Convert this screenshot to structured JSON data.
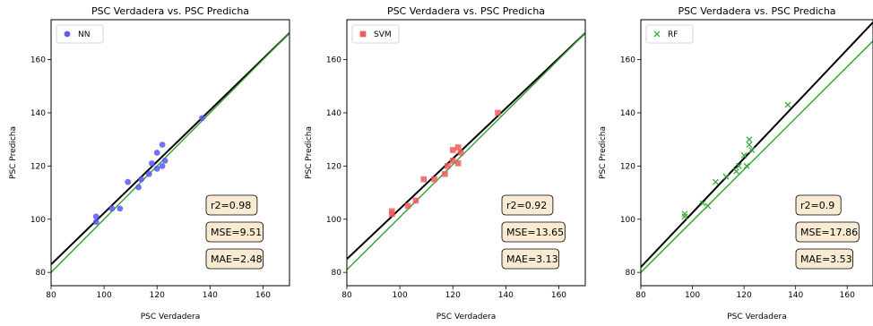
{
  "chart_data": [
    {
      "type": "scatter",
      "title": "PSC Verdadera vs. PSC Predicha",
      "xlabel": "PSC Verdadera",
      "ylabel": "PSC Predicha",
      "xlim": [
        80,
        170
      ],
      "ylim": [
        75,
        175
      ],
      "xticks": [
        80,
        100,
        120,
        140,
        160
      ],
      "yticks": [
        80,
        100,
        120,
        140,
        160
      ],
      "legend_position": "top-left",
      "series": [
        {
          "name": "NN",
          "marker": "circle",
          "color": "#5b5bf0",
          "points": [
            [
              97,
              101
            ],
            [
              97,
              99
            ],
            [
              103,
              104
            ],
            [
              106,
              104
            ],
            [
              109,
              114
            ],
            [
              113,
              112
            ],
            [
              114,
              115
            ],
            [
              117,
              117
            ],
            [
              118,
              121
            ],
            [
              120,
              119
            ],
            [
              120,
              125
            ],
            [
              122,
              120
            ],
            [
              122,
              128
            ],
            [
              123,
              122
            ],
            [
              137,
              138
            ]
          ]
        }
      ],
      "lines": [
        {
          "name": "black",
          "color": "#000000",
          "y_at_x80": 83,
          "y_at_x170": 170
        },
        {
          "name": "green",
          "color": "#2ca02c",
          "y_at_x80": 80,
          "y_at_x170": 170
        }
      ],
      "annotations": [
        "r2=0.98",
        "MSE=9.51",
        "MAE=2.48"
      ]
    },
    {
      "type": "scatter",
      "title": "PSC Verdadera vs. PSC Predicha",
      "xlabel": "PSC Verdadera",
      "ylabel": "PSC Predicha",
      "xlim": [
        80,
        170
      ],
      "ylim": [
        75,
        175
      ],
      "xticks": [
        80,
        100,
        120,
        140,
        160
      ],
      "yticks": [
        80,
        100,
        120,
        140,
        160
      ],
      "legend_position": "top-left",
      "series": [
        {
          "name": "SVM",
          "marker": "square",
          "color": "#f05a5a",
          "points": [
            [
              97,
              102
            ],
            [
              97,
              103
            ],
            [
              103,
              105
            ],
            [
              106,
              107
            ],
            [
              109,
              115
            ],
            [
              113,
              115
            ],
            [
              117,
              117
            ],
            [
              118,
              120
            ],
            [
              120,
              122
            ],
            [
              120,
              126
            ],
            [
              122,
              121
            ],
            [
              122,
              127
            ],
            [
              123,
              125
            ],
            [
              137,
              140
            ]
          ]
        }
      ],
      "lines": [
        {
          "name": "black",
          "color": "#000000",
          "y_at_x80": 85,
          "y_at_x170": 170
        },
        {
          "name": "green",
          "color": "#2ca02c",
          "y_at_x80": 81,
          "y_at_x170": 170
        }
      ],
      "annotations": [
        "r2=0.92",
        "MSE=13.65",
        "MAE=3.13"
      ]
    },
    {
      "type": "scatter",
      "title": "PSC Verdadera vs. PSC Predicha",
      "xlabel": "PSC Verdadera",
      "ylabel": "PSC Predicha",
      "xlim": [
        80,
        170
      ],
      "ylim": [
        75,
        175
      ],
      "xticks": [
        80,
        100,
        120,
        140,
        160
      ],
      "yticks": [
        80,
        100,
        120,
        140,
        160
      ],
      "legend_position": "top-left",
      "series": [
        {
          "name": "RF",
          "marker": "x",
          "color": "#3aa83a",
          "points": [
            [
              97,
              101
            ],
            [
              97,
              102
            ],
            [
              104,
              106
            ],
            [
              106,
              105
            ],
            [
              109,
              114
            ],
            [
              113,
              116
            ],
            [
              117,
              118
            ],
            [
              118,
              120
            ],
            [
              120,
              124
            ],
            [
              121,
              120
            ],
            [
              122,
              128
            ],
            [
              122,
              130
            ],
            [
              123,
              126
            ],
            [
              137,
              143
            ]
          ]
        }
      ],
      "lines": [
        {
          "name": "black",
          "color": "#000000",
          "y_at_x80": 82,
          "y_at_x170": 174
        },
        {
          "name": "green",
          "color": "#2ca02c",
          "y_at_x80": 80,
          "y_at_x170": 167
        }
      ],
      "annotations": [
        "r2=0.9",
        "MSE=17.86",
        "MAE=3.53"
      ]
    }
  ]
}
